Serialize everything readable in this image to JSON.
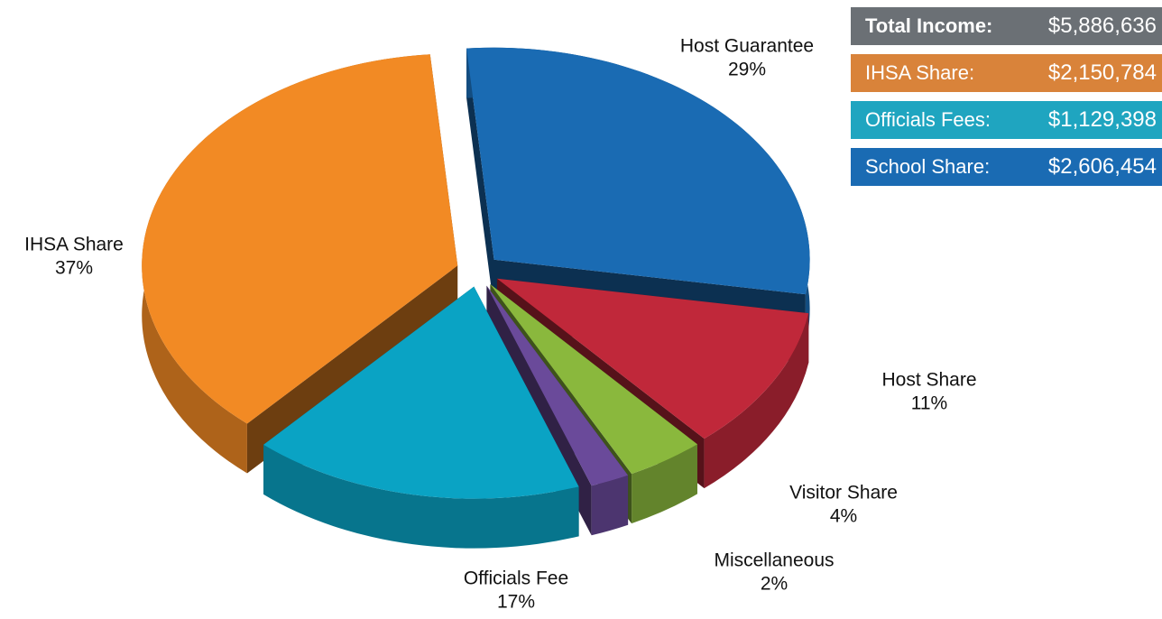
{
  "chart_data": {
    "type": "pie3d",
    "categories": [
      "Host Guarantee",
      "Host Share",
      "Visitor Share",
      "Miscellaneous",
      "Officials Fee",
      "IHSA Share"
    ],
    "values": [
      29,
      11,
      4,
      2,
      17,
      37
    ],
    "value_labels": [
      "29%",
      "11%",
      "4%",
      "2%",
      "17%",
      "37%"
    ],
    "colors": [
      "#1a6bb3",
      "#c0283a",
      "#8ab83d",
      "#6a4a9a",
      "#0aa3c4",
      "#f28a24"
    ]
  },
  "summary": [
    {
      "label": "Total Income:",
      "value": "$5,886,636"
    },
    {
      "label": "IHSA Share:",
      "value": "$2,150,784"
    },
    {
      "label": "Officials Fees:",
      "value": "$1,129,398"
    },
    {
      "label": "School Share:",
      "value": "$2,606,454"
    }
  ]
}
